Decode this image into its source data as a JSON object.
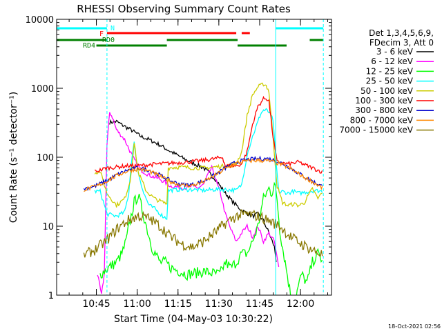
{
  "chart_data": {
    "type": "line",
    "title": "RHESSI Observing Summary Count Rates",
    "xlabel": "Start Time (04-May-03 10:30:22)",
    "ylabel": "Count Rate (s⁻¹ detector⁻¹)",
    "y_scale": "log",
    "ylim": [
      1,
      10000
    ],
    "xlim_minutes": [
      0,
      101
    ],
    "x_tick_labels": [
      "10:45",
      "11:00",
      "11:15",
      "11:30",
      "11:45",
      "12:00"
    ],
    "x_tick_minutes": [
      14.6,
      29.6,
      44.6,
      59.6,
      74.6,
      89.6
    ],
    "y_tick_labels": [
      "1",
      "10",
      "100",
      "1000",
      "10000"
    ],
    "y_tick_values": [
      1,
      10,
      100,
      1000,
      10000
    ],
    "legend_header": [
      "Det 1,3,4,5,6,9,",
      "FDecim 3, Att 0"
    ],
    "legend_position": "right",
    "footer_timestamp": "18-Oct-2021 02:56",
    "flags": [
      {
        "label": "N",
        "color": "#00ffff",
        "segments": [
          [
            0,
            18.5
          ],
          [
            80.5,
            98
          ]
        ]
      },
      {
        "label": "F",
        "color": "#ff0000",
        "segments": [
          [
            18.5,
            66
          ],
          [
            68,
            71
          ]
        ]
      },
      {
        "label": "RD0",
        "color": "#008000",
        "segments": [
          [
            0,
            18.5
          ],
          [
            40.5,
            66.5
          ],
          [
            93,
            98
          ]
        ]
      },
      {
        "label": "RD4",
        "color": "#008000",
        "segments": [
          [
            14.6,
            40.5
          ],
          [
            66.5,
            84.5
          ]
        ]
      }
    ],
    "markers_minutes": [
      18.5,
      80.5,
      98
    ],
    "series": [
      {
        "name": "3 - 6 keV",
        "color": "#000000",
        "x": [
          0,
          18.5,
          19.5,
          22,
          25,
          28,
          31,
          34,
          38,
          42,
          48,
          54,
          58,
          62,
          65,
          68,
          72,
          74,
          76,
          78,
          80,
          81
        ],
        "y": [
          null,
          null,
          320,
          330,
          280,
          240,
          200,
          180,
          150,
          120,
          90,
          70,
          50,
          30,
          22,
          17,
          14,
          15,
          12,
          8,
          5,
          2.5
        ]
      },
      {
        "name": "6 - 12 keV",
        "color": "#ff00ff",
        "x": [
          0,
          14,
          15,
          16.5,
          17.5,
          18.5,
          19.5,
          20.5,
          22,
          25,
          28,
          31,
          34,
          38,
          42,
          47,
          50,
          52,
          54,
          56,
          57,
          58,
          59,
          60,
          62,
          64,
          66,
          68,
          70,
          72,
          74,
          76,
          78,
          80,
          82
        ],
        "y": [
          null,
          null,
          2,
          1,
          2,
          150,
          450,
          380,
          250,
          180,
          100,
          65,
          55,
          48,
          38,
          36,
          38,
          36,
          40,
          60,
          70,
          55,
          40,
          32,
          15,
          9,
          6,
          8,
          10,
          7,
          10,
          6,
          8,
          6,
          2
        ]
      },
      {
        "name": "12 - 25 keV",
        "color": "#00ff00",
        "x": [
          0,
          14,
          16,
          19,
          22,
          24,
          25.5,
          27,
          28.5,
          30,
          31,
          33,
          35,
          38,
          40,
          42,
          48,
          54,
          60,
          62,
          64,
          66,
          68,
          70,
          72,
          74,
          76,
          78,
          79,
          80,
          81,
          82,
          83,
          84,
          86,
          88,
          90,
          92,
          94,
          96,
          98
        ],
        "y": [
          null,
          null,
          2,
          2.5,
          3,
          4,
          6,
          12,
          22,
          28,
          20,
          10,
          5,
          3,
          3,
          2.5,
          2,
          2.2,
          2,
          3,
          2.5,
          3,
          4,
          4,
          6,
          10,
          25,
          35,
          30,
          40,
          25,
          9,
          5,
          3,
          1,
          1,
          2,
          1.5,
          3,
          4,
          3
        ]
      },
      {
        "name": "25 - 50 keV",
        "color": "#00ffff",
        "x": [
          0,
          14,
          16,
          18.5,
          22,
          25,
          26.5,
          27.5,
          28.5,
          30,
          32,
          34,
          36,
          39,
          40.5,
          41,
          45,
          50,
          54,
          58,
          62,
          66,
          68,
          70,
          72,
          74,
          75,
          76,
          77,
          78,
          79.5,
          80.5,
          81.5,
          82,
          83,
          85,
          87,
          89,
          91,
          93,
          95,
          98
        ],
        "y": [
          null,
          32,
          32,
          15,
          14,
          16,
          30,
          90,
          160,
          60,
          30,
          20,
          18,
          14,
          13,
          33,
          34,
          34,
          33,
          34,
          34,
          33,
          40,
          110,
          200,
          330,
          430,
          480,
          480,
          450,
          350,
          100,
          35,
          30,
          32,
          30,
          32,
          30,
          31,
          32,
          33,
          32
        ]
      },
      {
        "name": "50 - 100 keV",
        "color": "#cccc00",
        "x": [
          0,
          14,
          16,
          18.5,
          22,
          25,
          27,
          28.5,
          30,
          33,
          36,
          40.5,
          41,
          45,
          50,
          55,
          58,
          62,
          66,
          68,
          70,
          72,
          74,
          76,
          77,
          78,
          79.5,
          81,
          83,
          85,
          87,
          89,
          91,
          94,
          96,
          98
        ],
        "y": [
          null,
          60,
          62,
          30,
          20,
          25,
          45,
          160,
          60,
          32,
          25,
          21,
          70,
          72,
          70,
          70,
          72,
          75,
          80,
          120,
          400,
          800,
          1050,
          1150,
          1100,
          900,
          200,
          38,
          22,
          20,
          21,
          20,
          22,
          35,
          25,
          33
        ]
      },
      {
        "name": "100 - 300 keV",
        "color": "#ff0000",
        "x": [
          0,
          14,
          16,
          18.5,
          22,
          26,
          30,
          34,
          38,
          42,
          48,
          54,
          58,
          61,
          62,
          66,
          68,
          70,
          72,
          74,
          76,
          77,
          78,
          79.5,
          81,
          83,
          85,
          87,
          89,
          91,
          94,
          96,
          98
        ],
        "y": [
          null,
          62,
          65,
          70,
          72,
          75,
          75,
          78,
          80,
          82,
          85,
          90,
          95,
          100,
          75,
          75,
          80,
          120,
          300,
          550,
          700,
          720,
          650,
          200,
          85,
          82,
          80,
          82,
          85,
          78,
          70,
          65,
          60
        ]
      },
      {
        "name": "300 - 800 keV",
        "color": "#0000cc",
        "x": [
          0,
          10,
          14,
          18,
          22,
          26,
          30,
          34,
          38,
          42,
          46,
          50,
          54,
          58,
          62,
          66,
          70,
          74,
          78,
          80,
          82,
          86,
          90,
          94,
          98
        ],
        "y": [
          null,
          35,
          38,
          45,
          55,
          65,
          70,
          65,
          55,
          45,
          40,
          40,
          45,
          55,
          70,
          85,
          92,
          95,
          95,
          90,
          85,
          70,
          55,
          45,
          37
        ]
      },
      {
        "name": "800 - 7000 keV",
        "color": "#ff8800",
        "x": [
          0,
          10,
          14,
          18,
          22,
          26,
          30,
          34,
          38,
          42,
          46,
          50,
          54,
          58,
          62,
          66,
          70,
          74,
          78,
          80,
          82,
          86,
          90,
          94,
          98
        ],
        "y": [
          null,
          34,
          37,
          44,
          54,
          63,
          68,
          63,
          53,
          44,
          39,
          39,
          44,
          54,
          68,
          82,
          88,
          90,
          88,
          85,
          80,
          68,
          54,
          44,
          35
        ]
      },
      {
        "name": "7000 - 15000 keV",
        "color": "#887700",
        "x": [
          0,
          10,
          14,
          18,
          22,
          26,
          30,
          34,
          38,
          42,
          46,
          50,
          54,
          58,
          62,
          66,
          70,
          74,
          78,
          80,
          82,
          86,
          90,
          94,
          98
        ],
        "y": [
          null,
          3.8,
          4.5,
          6,
          9,
          12,
          14,
          13,
          10,
          7,
          5.5,
          5,
          6,
          8,
          11,
          14,
          15,
          14,
          12,
          11,
          10,
          7,
          5.5,
          4.5,
          3.8
        ]
      }
    ]
  }
}
